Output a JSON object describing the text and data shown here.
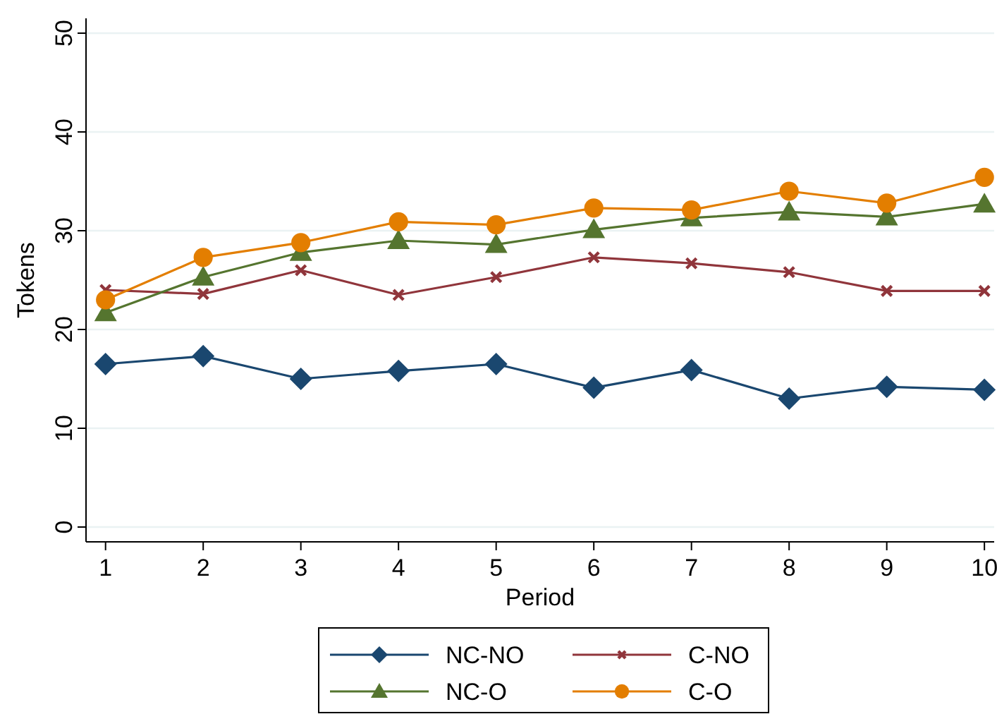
{
  "chart_data": {
    "type": "line",
    "xlabel": "Period",
    "ylabel": "Tokens",
    "x": [
      1,
      2,
      3,
      4,
      5,
      6,
      7,
      8,
      9,
      10
    ],
    "xlim": [
      0.8,
      10.1
    ],
    "xticks": [
      1,
      2,
      3,
      4,
      5,
      6,
      7,
      8,
      9,
      10
    ],
    "ylim": [
      -1.5,
      51.5
    ],
    "yticks": [
      0,
      10,
      20,
      30,
      40,
      50
    ],
    "grid": "y",
    "legend": "bottom",
    "series": [
      {
        "name": "NC-NO",
        "color": "#1a476f",
        "marker": "diamond",
        "values": [
          16.5,
          17.3,
          15.0,
          15.8,
          16.5,
          14.1,
          15.9,
          13.0,
          14.2,
          13.9
        ]
      },
      {
        "name": "C-NO",
        "color": "#90353b",
        "marker": "cross",
        "values": [
          24.0,
          23.6,
          26.0,
          23.5,
          25.3,
          27.3,
          26.7,
          25.8,
          23.9,
          23.9
        ]
      },
      {
        "name": "NC-O",
        "color": "#55752f",
        "marker": "triangle",
        "values": [
          21.7,
          25.3,
          27.8,
          29.0,
          28.6,
          30.1,
          31.3,
          31.9,
          31.4,
          32.7
        ]
      },
      {
        "name": "C-O",
        "color": "#e37e00",
        "marker": "circle",
        "values": [
          23.0,
          27.3,
          28.8,
          30.9,
          30.6,
          32.3,
          32.1,
          34.0,
          32.8,
          35.4
        ]
      }
    ]
  }
}
